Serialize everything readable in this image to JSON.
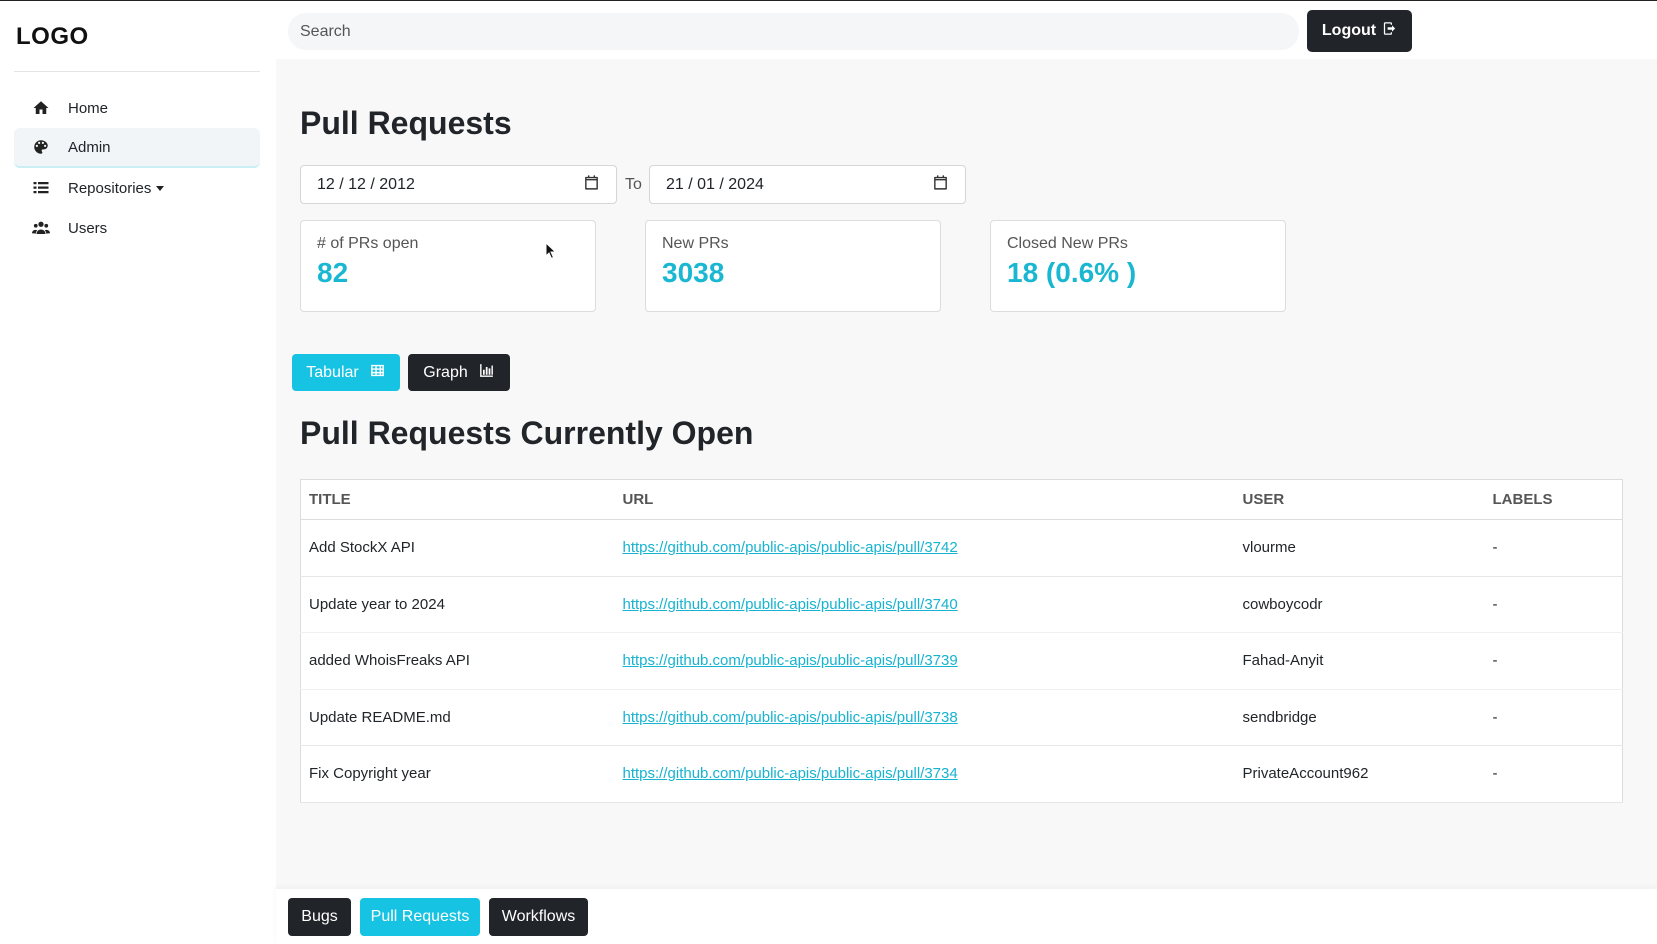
{
  "logo": "LOGO",
  "sidebar": {
    "items": [
      {
        "label": "Home",
        "icon": "home-icon"
      },
      {
        "label": "Admin",
        "icon": "palette-icon",
        "active": true
      },
      {
        "label": "Repositories",
        "icon": "list-icon",
        "dropdown": true
      },
      {
        "label": "Users",
        "icon": "users-icon"
      }
    ]
  },
  "topbar": {
    "search_placeholder": "Search",
    "logout_label": "Logout"
  },
  "main": {
    "title": "Pull Requests",
    "date_from": "12 / 12 / 2012",
    "date_to_label": "To",
    "date_to": "21 / 01 / 2024",
    "cards": [
      {
        "label": "# of PRs open",
        "value": "82"
      },
      {
        "label": "New PRs",
        "value": "3038"
      },
      {
        "label": "Closed New PRs",
        "value": "18 (0.6% )"
      }
    ],
    "view_buttons": {
      "tabular": "Tabular",
      "graph": "Graph"
    },
    "table_title": "Pull Requests Currently Open",
    "table": {
      "headers": [
        "TITLE",
        "URL",
        "USER",
        "LABELS"
      ],
      "rows": [
        {
          "title": "Add StockX API",
          "url": "https://github.com/public-apis/public-apis/pull/3742",
          "user": "vlourme",
          "labels": "-"
        },
        {
          "title": "Update year to 2024",
          "url": "https://github.com/public-apis/public-apis/pull/3740",
          "user": "cowboycodr",
          "labels": "-"
        },
        {
          "title": "added WhoisFreaks API",
          "url": "https://github.com/public-apis/public-apis/pull/3739",
          "user": "Fahad-Anyit",
          "labels": "-"
        },
        {
          "title": "Update README.md",
          "url": "https://github.com/public-apis/public-apis/pull/3738",
          "user": "sendbridge",
          "labels": "-"
        },
        {
          "title": "Fix Copyright year",
          "url": "https://github.com/public-apis/public-apis/pull/3734",
          "user": "PrivateAccount962",
          "labels": "-"
        }
      ]
    }
  },
  "bottombar": {
    "bugs": "Bugs",
    "pull_requests": "Pull Requests",
    "workflows": "Workflows"
  },
  "colors": {
    "accent": "#17c3e2",
    "dark": "#212529",
    "link": "#17b3d0"
  }
}
